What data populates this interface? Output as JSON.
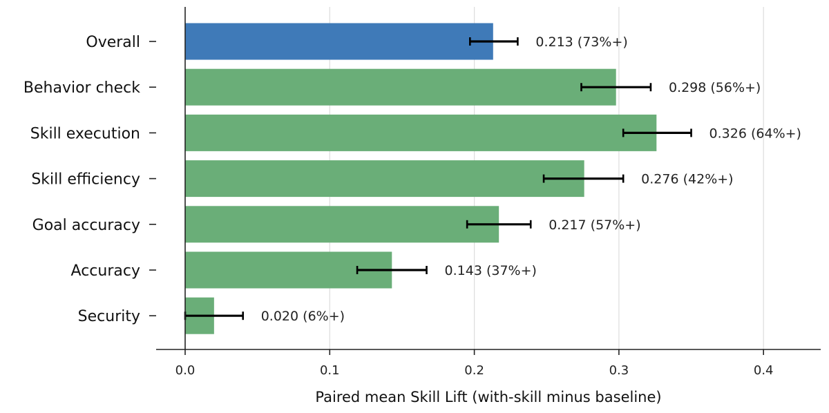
{
  "chart_data": {
    "type": "bar",
    "orientation": "horizontal",
    "categories": [
      "Overall",
      "Behavior check",
      "Skill execution",
      "Skill efficiency",
      "Goal accuracy",
      "Accuracy",
      "Security"
    ],
    "values": [
      0.213,
      0.298,
      0.326,
      0.276,
      0.217,
      0.143,
      0.02
    ],
    "error_low": [
      0.197,
      0.274,
      0.303,
      0.248,
      0.195,
      0.119,
      0.0
    ],
    "error_high": [
      0.23,
      0.322,
      0.35,
      0.303,
      0.239,
      0.167,
      0.04
    ],
    "value_labels": [
      "0.213  (73%+)",
      "0.298  (56%+)",
      "0.326  (64%+)",
      "0.276  (42%+)",
      "0.217  (57%+)",
      "0.143  (37%+)",
      "0.020  (6%+)"
    ],
    "bar_colors": [
      "#3f7ab8",
      "#6aae78",
      "#6aae78",
      "#6aae78",
      "#6aae78",
      "#6aae78",
      "#6aae78"
    ],
    "xlabel": "Paired mean Skill Lift (with-skill minus baseline)",
    "ylabel": "",
    "title": "",
    "xlim": [
      -0.02,
      0.44
    ],
    "xticks": [
      0.0,
      0.1,
      0.2,
      0.3,
      0.4
    ],
    "xtick_labels": [
      "0.0",
      "0.1",
      "0.2",
      "0.3",
      "0.4"
    ],
    "grid": "vertical"
  }
}
